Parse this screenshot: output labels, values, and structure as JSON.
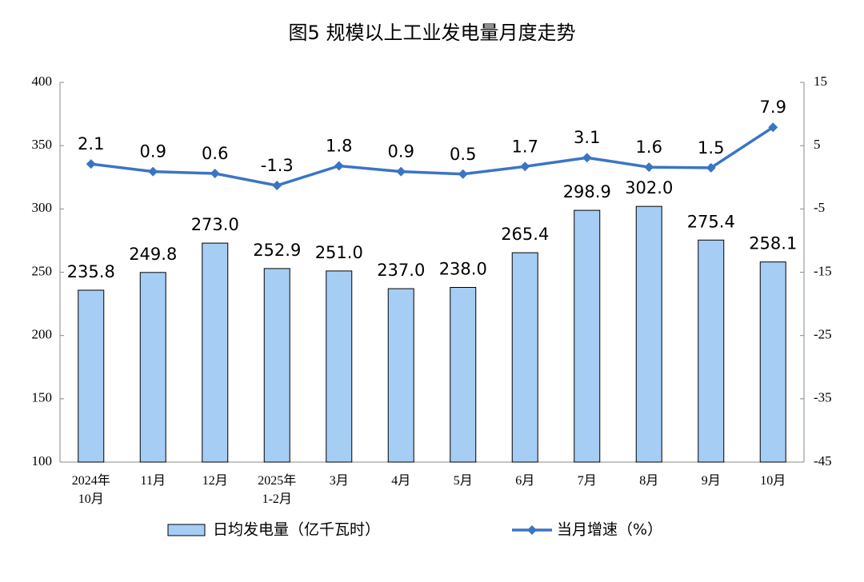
{
  "chart_data": {
    "type": "bar",
    "title": "图5  规模以上工业发电量月度走势",
    "categories": [
      "2024年\n10月",
      "11月",
      "12月",
      "2025年\n1-2月",
      "3月",
      "4月",
      "5月",
      "6月",
      "7月",
      "8月",
      "9月",
      "10月"
    ],
    "series": [
      {
        "name": "日均发电量（亿千瓦时）",
        "type": "bar",
        "color": "#a6cdf4",
        "values": [
          235.8,
          249.8,
          273.0,
          252.9,
          251.0,
          237.0,
          238.0,
          265.4,
          298.9,
          302.0,
          275.4,
          258.1
        ],
        "value_labels": [
          "235.8",
          "249.8",
          "273.0",
          "252.9",
          "251.0",
          "237.0",
          "238.0",
          "265.4",
          "298.9",
          "302.0",
          "275.4",
          "258.1"
        ]
      },
      {
        "name": "当月增速（%）",
        "type": "line",
        "axis": "y2",
        "color": "#3a75c4",
        "values": [
          2.1,
          0.9,
          0.6,
          -1.3,
          1.8,
          0.9,
          0.5,
          1.7,
          3.1,
          1.6,
          1.5,
          7.9
        ]
      }
    ],
    "ylim": [
      100,
      400
    ],
    "yticks": [
      100,
      150,
      200,
      250,
      300,
      350,
      400
    ],
    "y2lim": [
      -45,
      15
    ],
    "y2ticks": [
      -45,
      -35,
      -25,
      -15,
      -5,
      5,
      15
    ],
    "legend": "bottom"
  }
}
